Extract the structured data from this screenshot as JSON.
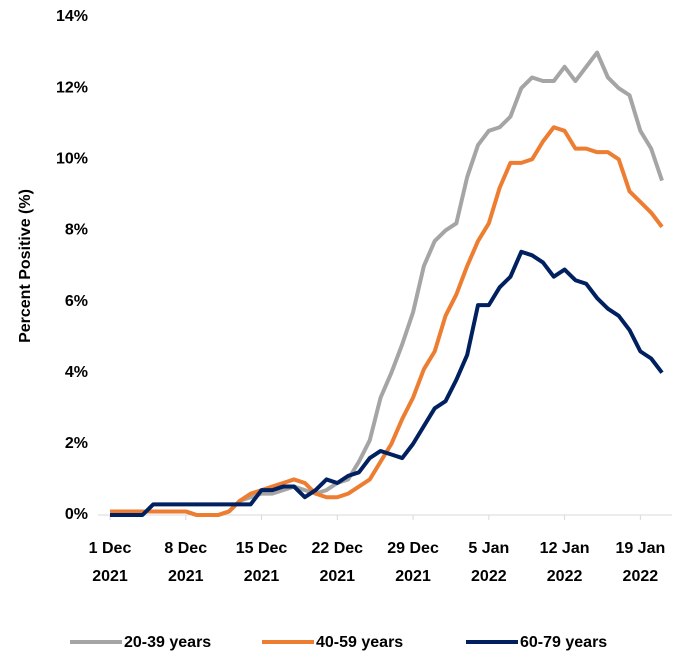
{
  "chart_data": {
    "type": "line",
    "ylabel": "Percent Positive (%)",
    "x": [
      "2021-12-01",
      "2021-12-02",
      "2021-12-03",
      "2021-12-04",
      "2021-12-05",
      "2021-12-06",
      "2021-12-07",
      "2021-12-08",
      "2021-12-09",
      "2021-12-10",
      "2021-12-11",
      "2021-12-12",
      "2021-12-13",
      "2021-12-14",
      "2021-12-15",
      "2021-12-16",
      "2021-12-17",
      "2021-12-18",
      "2021-12-19",
      "2021-12-20",
      "2021-12-21",
      "2021-12-22",
      "2021-12-23",
      "2021-12-24",
      "2021-12-25",
      "2021-12-26",
      "2021-12-27",
      "2021-12-28",
      "2021-12-29",
      "2021-12-30",
      "2021-12-31",
      "2022-01-01",
      "2022-01-02",
      "2022-01-03",
      "2022-01-04",
      "2022-01-05",
      "2022-01-06",
      "2022-01-07",
      "2022-01-08",
      "2022-01-09",
      "2022-01-10",
      "2022-01-11",
      "2022-01-12",
      "2022-01-13",
      "2022-01-14",
      "2022-01-15",
      "2022-01-16",
      "2022-01-17",
      "2022-01-18",
      "2022-01-19",
      "2022-01-20",
      "2022-01-21"
    ],
    "xlim": [
      "2021-12-01",
      "2022-01-21"
    ],
    "xticks": [
      {
        "value": "2021-12-01",
        "label": [
          "1 Dec",
          "2021"
        ]
      },
      {
        "value": "2021-12-08",
        "label": [
          "8 Dec",
          "2021"
        ]
      },
      {
        "value": "2021-12-15",
        "label": [
          "15 Dec",
          "2021"
        ]
      },
      {
        "value": "2021-12-22",
        "label": [
          "22 Dec",
          "2021"
        ]
      },
      {
        "value": "2021-12-29",
        "label": [
          "29 Dec",
          "2021"
        ]
      },
      {
        "value": "2022-01-05",
        "label": [
          "5 Jan",
          "2022"
        ]
      },
      {
        "value": "2022-01-12",
        "label": [
          "12 Jan",
          "2022"
        ]
      },
      {
        "value": "2022-01-19",
        "label": [
          "19 Jan",
          "2022"
        ]
      }
    ],
    "ylim": [
      0,
      14
    ],
    "yticks": [
      {
        "value": 0,
        "label": "0%"
      },
      {
        "value": 2,
        "label": "2%"
      },
      {
        "value": 4,
        "label": "4%"
      },
      {
        "value": 6,
        "label": "6%"
      },
      {
        "value": 8,
        "label": "8%"
      },
      {
        "value": 10,
        "label": "10%"
      },
      {
        "value": 12,
        "label": "12%"
      },
      {
        "value": 14,
        "label": "14%"
      }
    ],
    "series": [
      {
        "name": "20-39 years",
        "color": "#a5a5a5",
        "values": [
          0.1,
          0.1,
          0.1,
          0.1,
          0.1,
          0.1,
          0.1,
          0.1,
          0,
          0,
          0,
          0.1,
          0.4,
          0.5,
          0.6,
          0.6,
          0.7,
          0.8,
          0.7,
          0.6,
          0.7,
          0.9,
          1.0,
          1.5,
          2.1,
          3.3,
          4.0,
          4.8,
          5.7,
          7.0,
          7.7,
          8.0,
          8.2,
          9.5,
          10.4,
          10.8,
          10.9,
          11.2,
          12.0,
          12.3,
          12.2,
          12.2,
          12.6,
          12.2,
          12.6,
          13.0,
          12.3,
          12.0,
          11.8,
          10.8,
          10.3,
          9.4
        ]
      },
      {
        "name": "40-59 years",
        "color": "#ed7d31",
        "values": [
          0.1,
          0.1,
          0.1,
          0.1,
          0.1,
          0.1,
          0.1,
          0.1,
          0,
          0,
          0,
          0.1,
          0.4,
          0.6,
          0.7,
          0.8,
          0.9,
          1.0,
          0.9,
          0.6,
          0.5,
          0.5,
          0.6,
          0.8,
          1.0,
          1.5,
          2.0,
          2.7,
          3.3,
          4.1,
          4.6,
          5.6,
          6.2,
          7.0,
          7.7,
          8.2,
          9.2,
          9.9,
          9.9,
          10.0,
          10.5,
          10.9,
          10.8,
          10.3,
          10.3,
          10.2,
          10.2,
          10.0,
          9.1,
          8.8,
          8.5,
          8.1
        ]
      },
      {
        "name": "60-79 years",
        "color": "#002060",
        "values": [
          0,
          0,
          0,
          0,
          0.3,
          0.3,
          0.3,
          0.3,
          0.3,
          0.3,
          0.3,
          0.3,
          0.3,
          0.3,
          0.7,
          0.7,
          0.8,
          0.8,
          0.5,
          0.7,
          1.0,
          0.9,
          1.1,
          1.2,
          1.6,
          1.8,
          1.7,
          1.6,
          2.0,
          2.5,
          3.0,
          3.2,
          3.8,
          4.5,
          5.9,
          5.9,
          6.4,
          6.7,
          7.4,
          7.3,
          7.1,
          6.7,
          6.9,
          6.6,
          6.5,
          6.1,
          5.8,
          5.6,
          5.2,
          4.6,
          4.4,
          4.0
        ]
      }
    ]
  }
}
